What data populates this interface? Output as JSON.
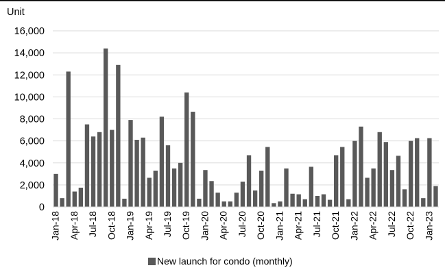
{
  "chart_data": {
    "type": "bar",
    "ylabel": "Unit",
    "ylim": [
      0,
      16000
    ],
    "yticks": [
      0,
      2000,
      4000,
      6000,
      8000,
      10000,
      12000,
      14000,
      16000
    ],
    "ytick_labels": [
      "0",
      "2,000",
      "4,000",
      "6,000",
      "8,000",
      "10,000",
      "12,000",
      "14,000",
      "16,000"
    ],
    "grid": true,
    "legend_position": "bottom-center",
    "x_tick_every": 3,
    "categories": [
      "Jan-18",
      "Feb-18",
      "Mar-18",
      "Apr-18",
      "May-18",
      "Jun-18",
      "Jul-18",
      "Aug-18",
      "Sep-18",
      "Oct-18",
      "Nov-18",
      "Dec-18",
      "Jan-19",
      "Feb-19",
      "Mar-19",
      "Apr-19",
      "May-19",
      "Jun-19",
      "Jul-19",
      "Aug-19",
      "Sep-19",
      "Oct-19",
      "Nov-19",
      "Dec-19",
      "Jan-20",
      "Feb-20",
      "Mar-20",
      "Apr-20",
      "May-20",
      "Jun-20",
      "Jul-20",
      "Aug-20",
      "Sep-20",
      "Oct-20",
      "Nov-20",
      "Dec-20",
      "Jan-21",
      "Feb-21",
      "Mar-21",
      "Apr-21",
      "May-21",
      "Jun-21",
      "Jul-21",
      "Aug-21",
      "Sep-21",
      "Oct-21",
      "Nov-21",
      "Dec-21",
      "Jan-22",
      "Feb-22",
      "Mar-22",
      "Apr-22",
      "May-22",
      "Jun-22",
      "Jul-22",
      "Aug-22",
      "Sep-22",
      "Oct-22",
      "Nov-22",
      "Dec-22",
      "Jan-23",
      "Feb-23"
    ],
    "series": [
      {
        "name": "New launch for condo (monthly)",
        "color": "#595959",
        "values": [
          3000,
          800,
          12300,
          1400,
          1750,
          7500,
          6400,
          6800,
          14400,
          7000,
          12900,
          750,
          7900,
          6100,
          6300,
          2650,
          3300,
          8200,
          5600,
          3500,
          4000,
          10400,
          8650,
          750,
          3350,
          2350,
          1300,
          500,
          500,
          1300,
          2300,
          4700,
          1500,
          3300,
          5450,
          350,
          500,
          3500,
          1200,
          1150,
          700,
          3650,
          1000,
          1150,
          650,
          4700,
          5450,
          700,
          6000,
          7300,
          2650,
          3500,
          6800,
          5900,
          3350,
          4650,
          1600,
          6000,
          6250,
          800,
          6250,
          1900
        ]
      }
    ]
  }
}
